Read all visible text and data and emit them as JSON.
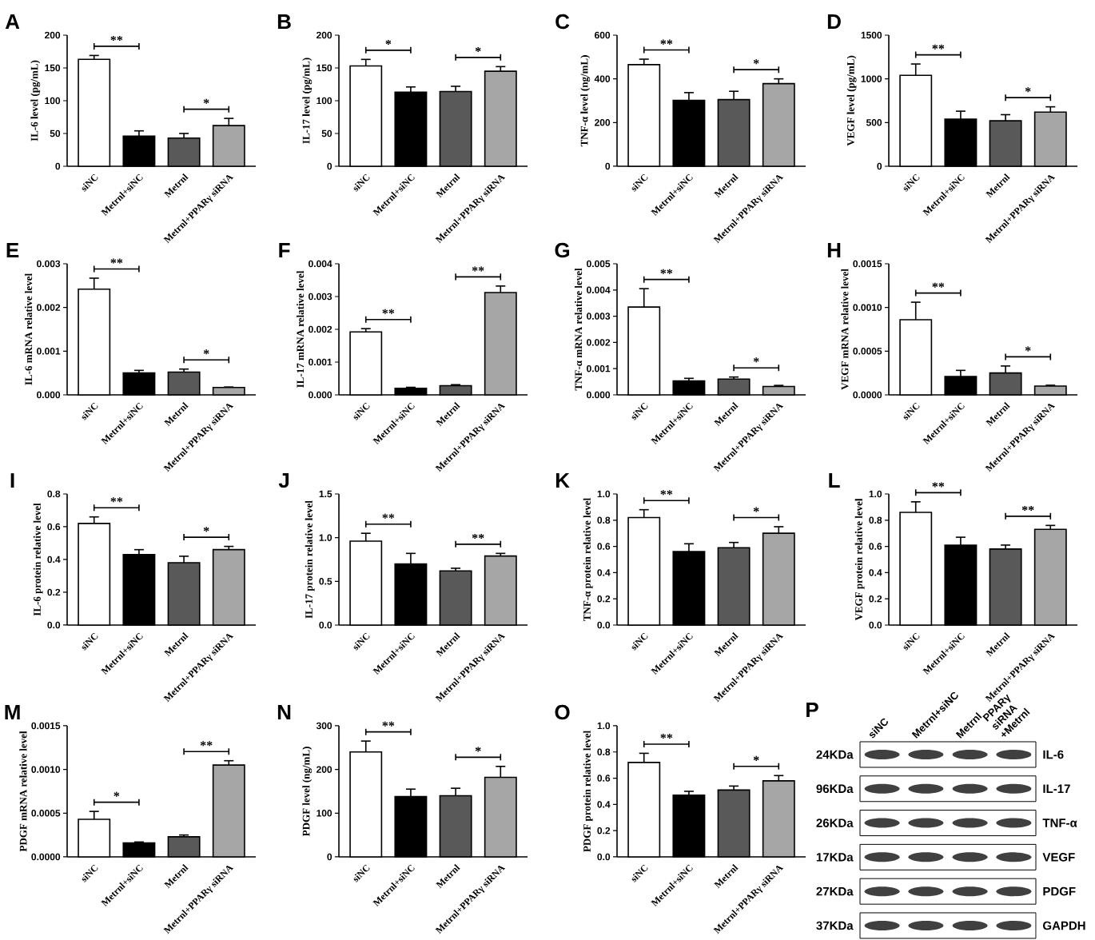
{
  "chart_data": [
    {
      "type": "bar",
      "title": "A",
      "ylabel": "IL-6 level  (pg/mL)",
      "categories": [
        "siNC",
        "Metrnl+siNC",
        "Metrnl",
        "Metrnl+PPARγ siRNA"
      ],
      "values": [
        163,
        46,
        43,
        62
      ],
      "errors": [
        6,
        8,
        7,
        11
      ],
      "colors": [
        "#ffffff",
        "#000000",
        "#595959",
        "#a6a6a6"
      ],
      "ylim": [
        0,
        200
      ],
      "yticks": [
        0,
        50,
        100,
        150,
        200
      ],
      "annotations": [
        "**",
        "*"
      ]
    },
    {
      "type": "bar",
      "title": "B",
      "ylabel": "IL-17 level (pg/mL)",
      "categories": [
        "siNC",
        "Metrnl+siNC",
        "Metrnl",
        "Metrnl+PPARγ siRNA"
      ],
      "values": [
        153,
        113,
        114,
        145
      ],
      "errors": [
        10,
        8,
        8,
        7
      ],
      "colors": [
        "#ffffff",
        "#000000",
        "#595959",
        "#a6a6a6"
      ],
      "ylim": [
        0,
        200
      ],
      "yticks": [
        0,
        50,
        100,
        150,
        200
      ],
      "annotations": [
        "*",
        "*"
      ]
    },
    {
      "type": "bar",
      "title": "C",
      "ylabel": "TNF-α level (ng/mL)",
      "categories": [
        "siNC",
        "Metrnl+siNC",
        "Metrnl",
        "Metrnl+PPARγ siRNA"
      ],
      "values": [
        465,
        302,
        305,
        378
      ],
      "errors": [
        25,
        35,
        38,
        22
      ],
      "colors": [
        "#ffffff",
        "#000000",
        "#595959",
        "#a6a6a6"
      ],
      "ylim": [
        0,
        600
      ],
      "yticks": [
        0,
        200,
        400,
        600
      ],
      "annotations": [
        "**",
        "*"
      ]
    },
    {
      "type": "bar",
      "title": "D",
      "ylabel": "VEGF level (pg/mL)",
      "categories": [
        "siNC",
        "Metrnl+siNC",
        "Metrnl",
        "Metrnl+PPARγ siRNA"
      ],
      "values": [
        1040,
        540,
        520,
        620
      ],
      "errors": [
        130,
        90,
        70,
        60
      ],
      "colors": [
        "#ffffff",
        "#000000",
        "#595959",
        "#a6a6a6"
      ],
      "ylim": [
        0,
        1500
      ],
      "yticks": [
        0,
        500,
        1000,
        1500
      ],
      "annotations": [
        "**",
        "*"
      ]
    },
    {
      "type": "bar",
      "title": "E",
      "ylabel": "IL-6 mRNA relative level",
      "categories": [
        "siNC",
        "Metrnl+siNC",
        "Metrnl",
        "Metrnl+PPARγ siRNA"
      ],
      "values": [
        0.00242,
        0.0005,
        0.00052,
        0.00017
      ],
      "errors": [
        0.00025,
        6e-05,
        7e-05,
        1e-05
      ],
      "colors": [
        "#ffffff",
        "#000000",
        "#595959",
        "#a6a6a6"
      ],
      "ylim": [
        0,
        0.003
      ],
      "yticks": [
        {
          "value": 0,
          "label": "0.000"
        },
        0.001,
        0.002,
        0.003
      ],
      "annotations": [
        "**",
        "*"
      ]
    },
    {
      "type": "bar",
      "title": "F",
      "ylabel": "IL-17 mRNA relative level",
      "categories": [
        "siNC",
        "Metrnl+siNC",
        "Metrnl",
        "Metrnl+PPARγ siRNA"
      ],
      "values": [
        0.00192,
        0.0002,
        0.00028,
        0.00312
      ],
      "errors": [
        0.0001,
        3e-05,
        3e-05,
        0.0002
      ],
      "colors": [
        "#ffffff",
        "#000000",
        "#595959",
        "#a6a6a6"
      ],
      "ylim": [
        0,
        0.004
      ],
      "yticks": [
        {
          "value": 0,
          "label": "0.000"
        },
        0.001,
        0.002,
        0.003,
        0.004
      ],
      "annotations": [
        "**",
        "**"
      ]
    },
    {
      "type": "bar",
      "title": "G",
      "ylabel": "TNF-α mRNA relative level",
      "categories": [
        "siNC",
        "Metrnl+siNC",
        "Metrnl",
        "Metrnl+PPARγ siRNA"
      ],
      "values": [
        0.00335,
        0.00053,
        0.0006,
        0.00032
      ],
      "errors": [
        0.0007,
        0.0001,
        8e-05,
        4e-05
      ],
      "colors": [
        "#ffffff",
        "#000000",
        "#595959",
        "#a6a6a6"
      ],
      "ylim": [
        0,
        0.005
      ],
      "yticks": [
        {
          "value": 0,
          "label": "0.000"
        },
        0.001,
        0.002,
        0.003,
        0.004,
        0.005
      ],
      "annotations": [
        "**",
        "*"
      ]
    },
    {
      "type": "bar",
      "title": "H",
      "ylabel": "VEGF mRNA relative level",
      "categories": [
        "siNC",
        "Metrnl+siNC",
        "Metrnl",
        "Metrnl+PPARγ siRNA"
      ],
      "values": [
        0.00086,
        0.00021,
        0.00025,
        0.0001
      ],
      "errors": [
        0.0002,
        7e-05,
        8e-05,
        1e-05
      ],
      "colors": [
        "#ffffff",
        "#000000",
        "#595959",
        "#a6a6a6"
      ],
      "ylim": [
        0,
        0.0015
      ],
      "yticks": [
        {
          "value": 0,
          "label": "0.0000"
        },
        0.0005,
        {
          "value": 0.001,
          "label": "0.0010"
        },
        0.0015
      ],
      "annotations": [
        "**",
        "*"
      ]
    },
    {
      "type": "bar",
      "title": "I",
      "ylabel": "IL-6 protein relative level",
      "categories": [
        "siNC",
        "Metrnl+siNC",
        "Metrnl",
        "Metrnl+PPARγ siRNA"
      ],
      "values": [
        0.62,
        0.43,
        0.38,
        0.46
      ],
      "errors": [
        0.04,
        0.03,
        0.04,
        0.02
      ],
      "colors": [
        "#ffffff",
        "#000000",
        "#595959",
        "#a6a6a6"
      ],
      "ylim": [
        0,
        0.8
      ],
      "yticks": [
        {
          "value": 0,
          "label": "0.0"
        },
        0.2,
        0.4,
        0.6,
        0.8
      ],
      "annotations": [
        "**",
        "*"
      ]
    },
    {
      "type": "bar",
      "title": "J",
      "ylabel": "IL-17 protein relative level",
      "categories": [
        "siNC",
        "Metrnl+siNC",
        "Metrnl",
        "Metrnl+PPARγ siRNA"
      ],
      "values": [
        0.96,
        0.7,
        0.62,
        0.79
      ],
      "errors": [
        0.09,
        0.12,
        0.03,
        0.03
      ],
      "colors": [
        "#ffffff",
        "#000000",
        "#595959",
        "#a6a6a6"
      ],
      "ylim": [
        0,
        1.5
      ],
      "yticks": [
        {
          "value": 0,
          "label": "0.0"
        },
        0.5,
        {
          "value": 1,
          "label": "1.0"
        },
        1.5
      ],
      "annotations": [
        "**",
        "**"
      ]
    },
    {
      "type": "bar",
      "title": "K",
      "ylabel": "TNF-α protein relative level",
      "categories": [
        "siNC",
        "Metrnl+siNC",
        "Metrnl",
        "Metrnl+PPARγ siRNA"
      ],
      "values": [
        0.82,
        0.56,
        0.59,
        0.7
      ],
      "errors": [
        0.06,
        0.06,
        0.04,
        0.05
      ],
      "colors": [
        "#ffffff",
        "#000000",
        "#595959",
        "#a6a6a6"
      ],
      "ylim": [
        0,
        1
      ],
      "yticks": [
        {
          "value": 0,
          "label": "0.0"
        },
        0.2,
        0.4,
        0.6,
        0.8,
        {
          "value": 1,
          "label": "1.0"
        }
      ],
      "annotations": [
        "**",
        "*"
      ]
    },
    {
      "type": "bar",
      "title": "L",
      "ylabel": "VEGF protein relative level",
      "categories": [
        "siNC",
        "Metrnl+siNC",
        "Metrnl",
        "Metrnl+PPARγ siRNA"
      ],
      "values": [
        0.86,
        0.61,
        0.58,
        0.73
      ],
      "errors": [
        0.08,
        0.06,
        0.03,
        0.03
      ],
      "colors": [
        "#ffffff",
        "#000000",
        "#595959",
        "#a6a6a6"
      ],
      "ylim": [
        0,
        1
      ],
      "yticks": [
        {
          "value": 0,
          "label": "0.0"
        },
        0.2,
        0.4,
        0.6,
        0.8,
        {
          "value": 1,
          "label": "1.0"
        }
      ],
      "annotations": [
        "**",
        "**"
      ]
    },
    {
      "type": "bar",
      "title": "M",
      "ylabel": "PDGF mRNA relative level",
      "categories": [
        "siNC",
        "Metrnl+siNC",
        "Metrnl",
        "Metrnl+PPARγ siRNA"
      ],
      "values": [
        0.00043,
        0.00016,
        0.00023,
        0.00105
      ],
      "errors": [
        9e-05,
        1e-05,
        2e-05,
        5e-05
      ],
      "colors": [
        "#ffffff",
        "#000000",
        "#595959",
        "#a6a6a6"
      ],
      "ylim": [
        0,
        0.0015
      ],
      "yticks": [
        {
          "value": 0,
          "label": "0.0000"
        },
        0.0005,
        {
          "value": 0.001,
          "label": "0.0010"
        },
        0.0015
      ],
      "annotations": [
        "*",
        "**"
      ]
    },
    {
      "type": "bar",
      "title": "N",
      "ylabel": "PDGF level (ng/mL)",
      "categories": [
        "siNC",
        "Metrnl+siNC",
        "Metrnl",
        "Metrnl+PPARγ siRNA"
      ],
      "values": [
        240,
        138,
        140,
        182
      ],
      "errors": [
        25,
        17,
        17,
        25
      ],
      "colors": [
        "#ffffff",
        "#000000",
        "#595959",
        "#a6a6a6"
      ],
      "ylim": [
        0,
        300
      ],
      "yticks": [
        0,
        100,
        200,
        300
      ],
      "annotations": [
        "**",
        "*"
      ]
    },
    {
      "type": "bar",
      "title": "O",
      "ylabel": "PDGF protein relative level",
      "categories": [
        "siNC",
        "Metrnl+siNC",
        "Metrnl",
        "Metrnl+PPARγ siRNA"
      ],
      "values": [
        0.72,
        0.47,
        0.51,
        0.58
      ],
      "errors": [
        0.07,
        0.03,
        0.03,
        0.04
      ],
      "colors": [
        "#ffffff",
        "#000000",
        "#595959",
        "#a6a6a6"
      ],
      "ylim": [
        0,
        1
      ],
      "yticks": [
        {
          "value": 0,
          "label": "0.0"
        },
        0.2,
        0.4,
        0.6,
        0.8,
        {
          "value": 1,
          "label": "1.0"
        }
      ],
      "annotations": [
        "**",
        "*"
      ]
    },
    {
      "type": "other",
      "title": "P",
      "categories": [
        "siNC",
        "Metrnl+siNC",
        "Metrnl",
        "PPARγ siRNA +Metrnl"
      ],
      "y_categories": [
        "24KDa",
        "96KDa",
        "26KDa",
        "17KDa",
        "27KDa",
        "37KDa"
      ],
      "y2_categories": [
        "IL-6",
        "IL-17",
        "TNF-α",
        "VEGF",
        "PDGF",
        "GAPDH"
      ]
    }
  ]
}
